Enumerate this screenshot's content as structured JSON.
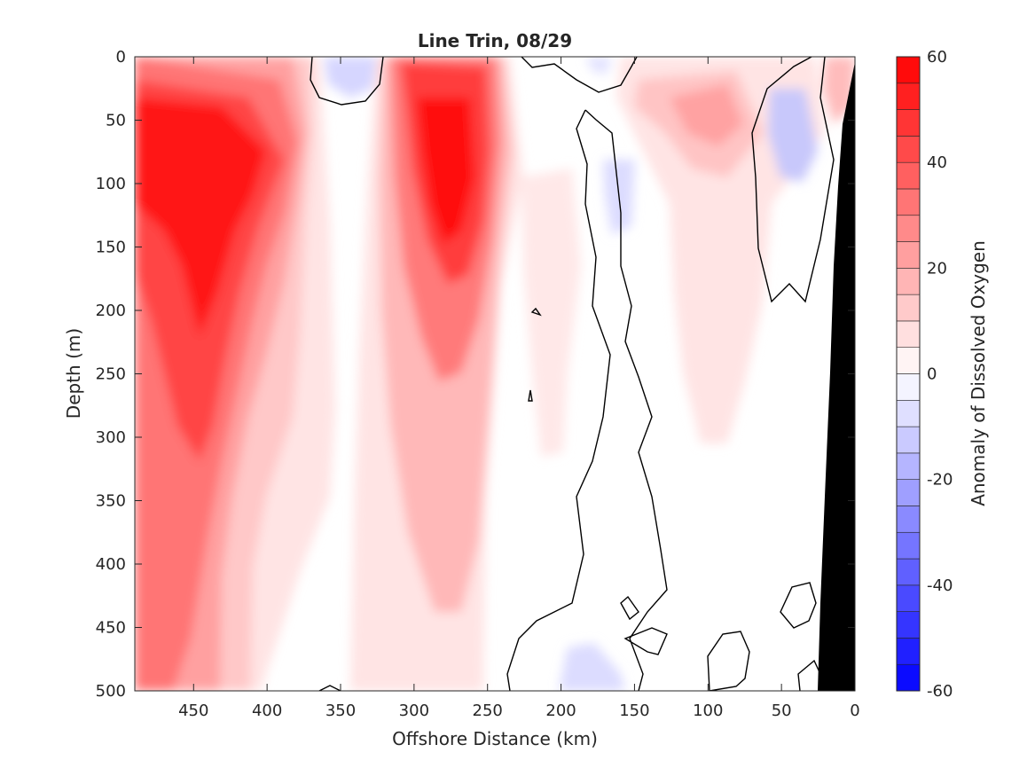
{
  "chart_data": {
    "type": "heatmap",
    "subtype": "filled-contour-section",
    "title": "Line Trin, 08/29",
    "xlabel": "Offshore Distance (km)",
    "ylabel": "Depth (m)",
    "xlim": [
      490,
      0
    ],
    "ylim": [
      0,
      500
    ],
    "x_reversed": true,
    "y_reversed": true,
    "x_ticks": [
      450,
      400,
      350,
      300,
      250,
      200,
      150,
      100,
      50,
      0
    ],
    "y_ticks": [
      0,
      50,
      100,
      150,
      200,
      250,
      300,
      350,
      400,
      450,
      500
    ],
    "colorbar": {
      "label": "Anomaly of Dissolved Oxygen",
      "range": [
        -60,
        60
      ],
      "ticks": [
        60,
        40,
        20,
        0,
        -20,
        -40,
        -60
      ],
      "levels": [
        -60,
        -55,
        -50,
        -45,
        -40,
        -35,
        -30,
        -25,
        -20,
        -15,
        -10,
        -5,
        0,
        5,
        10,
        15,
        20,
        25,
        30,
        35,
        40,
        45,
        50,
        55,
        60
      ],
      "colormap": "blue-white-red",
      "neg_color": "#0000ff",
      "pos_color": "#ff0000",
      "zero_color": "#ffffff"
    },
    "features": [
      {
        "name": "offshore-max-core",
        "x_km": 450,
        "depth_m": 60,
        "value": 55
      },
      {
        "name": "offshore-deep-lobe",
        "x_km": 440,
        "depth_m": 220,
        "value": 45
      },
      {
        "name": "mid-core",
        "x_km": 275,
        "depth_m": 110,
        "value": 55
      },
      {
        "name": "surface-min-350",
        "x_km": 340,
        "depth_m": 10,
        "value": -5
      },
      {
        "name": "nearshore-min-50",
        "x_km": 40,
        "depth_m": 70,
        "value": -8
      },
      {
        "name": "nearshore-max-90",
        "x_km": 90,
        "depth_m": 40,
        "value": 22
      }
    ],
    "zero_contour_color": "#000000",
    "bathymetry_color": "#000000"
  }
}
